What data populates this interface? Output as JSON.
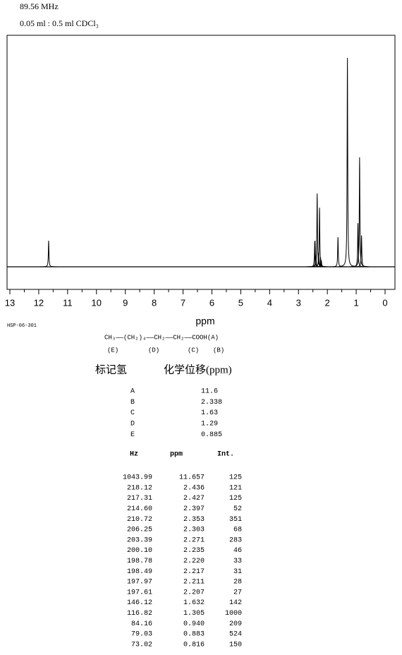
{
  "header": {
    "frequency": "89.56 MHz",
    "sample": "0.05 ml : 0.5 ml CDCl₃"
  },
  "spectrum": {
    "xlabel": "ppm",
    "xlim": [
      13,
      0
    ],
    "xticks": [
      13,
      12,
      11,
      10,
      9,
      8,
      7,
      6,
      5,
      4,
      3,
      2,
      1,
      0
    ]
  },
  "code": "HSP-06-301",
  "structure": {
    "formula": "CH₃——(CH₂)₄——CH₂——CH₂——COOH(A)",
    "labels": [
      "(E)",
      "(D)",
      "(C)",
      "(B)"
    ]
  },
  "assignments": {
    "columns": [
      "标记氢",
      "化学位移(ppm)"
    ],
    "rows": [
      [
        "A",
        "11.6"
      ],
      [
        "B",
        "2.338"
      ],
      [
        "C",
        "1.63"
      ],
      [
        "D",
        "1.29"
      ],
      [
        "E",
        "0.885"
      ]
    ]
  },
  "peaks": {
    "columns": [
      "Hz",
      "ppm",
      "Int."
    ],
    "rows": [
      [
        "1043.99",
        "11.657",
        "125"
      ],
      [
        "218.12",
        "2.436",
        "121"
      ],
      [
        "217.31",
        "2.427",
        "125"
      ],
      [
        "214.60",
        "2.397",
        "52"
      ],
      [
        "210.72",
        "2.353",
        "351"
      ],
      [
        "206.25",
        "2.303",
        "68"
      ],
      [
        "203.39",
        "2.271",
        "283"
      ],
      [
        "200.10",
        "2.235",
        "46"
      ],
      [
        "198.78",
        "2.220",
        "33"
      ],
      [
        "198.49",
        "2.217",
        "31"
      ],
      [
        "197.97",
        "2.211",
        "28"
      ],
      [
        "197.61",
        "2.207",
        "27"
      ],
      [
        "146.12",
        "1.632",
        "142"
      ],
      [
        "116.82",
        "1.305",
        "1000"
      ],
      [
        "84.16",
        "0.940",
        "209"
      ],
      [
        "79.03",
        "0.883",
        "524"
      ],
      [
        "73.02",
        "0.816",
        "150"
      ]
    ]
  }
}
